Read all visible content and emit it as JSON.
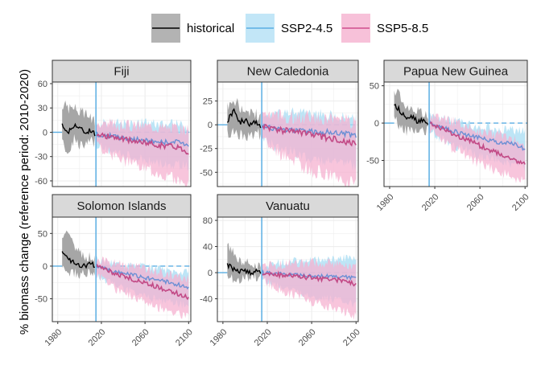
{
  "chart_data": {
    "type": "line",
    "ylabel": "% biomass change (reference period: 2010-2020)",
    "xlabel": "",
    "legend": {
      "placement": "top",
      "entries": [
        {
          "key": "historical",
          "label": "historical",
          "line": "#000000",
          "fill": "#b3b3b3"
        },
        {
          "key": "ssp245",
          "label": "SSP2-4.5",
          "line": "#5aaee3",
          "fill": "#c2e6f7"
        },
        {
          "key": "ssp585",
          "label": "SSP5-8.5",
          "line": "#cf4f8d",
          "fill": "#f7c1d9"
        }
      ]
    },
    "colors": {
      "historical_line": "#000000",
      "historical_band": "#a6a6a6",
      "ssp245_line": "#6b8fd4",
      "ssp245_band": "#a7dcf3",
      "ssp585_line": "#c24a86",
      "ssp585_band": "#f5b1d0",
      "overlap_band": "#c6a3cc",
      "vline": "#5aaee3",
      "zero_line": "#5aaee3"
    },
    "xticks": [
      1980,
      2020,
      2060,
      2100
    ],
    "xlim": [
      1975,
      2102
    ],
    "vline": 2015,
    "panels": [
      {
        "title": "Fiji",
        "ylim": [
          -67,
          62
        ],
        "yticks": [
          60,
          30,
          0,
          -30,
          -60
        ],
        "historical": {
          "x": [
            1984,
            1990,
            1995,
            2000,
            2005,
            2010,
            2014
          ],
          "y": [
            8,
            0,
            10,
            5,
            0,
            3,
            -2
          ],
          "lo": [
            -15,
            -22,
            -10,
            -15,
            -18,
            -12,
            -14
          ],
          "hi": [
            35,
            30,
            30,
            25,
            22,
            18,
            15
          ]
        },
        "ssp245": {
          "x": [
            2015,
            2030,
            2045,
            2060,
            2075,
            2090,
            2100
          ],
          "y": [
            -2,
            -5,
            -8,
            -10,
            -12,
            -12,
            -15
          ],
          "lo": [
            -15,
            -25,
            -30,
            -35,
            -38,
            -40,
            -42
          ],
          "hi": [
            10,
            12,
            10,
            12,
            10,
            10,
            8
          ]
        },
        "ssp585": {
          "x": [
            2015,
            2030,
            2045,
            2060,
            2075,
            2090,
            2100
          ],
          "y": [
            -2,
            -6,
            -10,
            -13,
            -16,
            -18,
            -25
          ],
          "lo": [
            -15,
            -28,
            -38,
            -45,
            -52,
            -58,
            -65
          ],
          "hi": [
            10,
            10,
            8,
            8,
            6,
            5,
            2
          ]
        }
      },
      {
        "title": "New Caledonia",
        "ylim": [
          -65,
          45
        ],
        "yticks": [
          25,
          0,
          -25,
          -50
        ],
        "historical": {
          "x": [
            1984,
            1990,
            1995,
            2000,
            2005,
            2010,
            2014
          ],
          "y": [
            5,
            15,
            2,
            5,
            0,
            2,
            -1
          ],
          "lo": [
            -10,
            -8,
            -8,
            -10,
            -10,
            -8,
            -9
          ],
          "hi": [
            20,
            30,
            15,
            15,
            12,
            10,
            10
          ]
        },
        "ssp245": {
          "x": [
            2015,
            2030,
            2045,
            2060,
            2075,
            2090,
            2100
          ],
          "y": [
            -1,
            -4,
            -6,
            -7,
            -8,
            -9,
            -12
          ],
          "lo": [
            -15,
            -25,
            -30,
            -35,
            -38,
            -40,
            -45
          ],
          "hi": [
            10,
            12,
            12,
            12,
            10,
            8,
            5
          ]
        },
        "ssp585": {
          "x": [
            2015,
            2030,
            2045,
            2060,
            2075,
            2090,
            2100
          ],
          "y": [
            -1,
            -5,
            -8,
            -11,
            -14,
            -17,
            -20
          ],
          "lo": [
            -15,
            -30,
            -40,
            -48,
            -52,
            -58,
            -62
          ],
          "hi": [
            10,
            10,
            8,
            8,
            6,
            5,
            2
          ]
        }
      },
      {
        "title": "Papua New Guinea",
        "ylim": [
          -85,
          55
        ],
        "yticks": [
          50,
          0,
          -50
        ],
        "historical": {
          "x": [
            1984,
            1990,
            1995,
            2000,
            2005,
            2010,
            2014
          ],
          "y": [
            25,
            15,
            5,
            8,
            2,
            5,
            0
          ],
          "lo": [
            5,
            -5,
            -10,
            -10,
            -12,
            -8,
            -10
          ],
          "hi": [
            45,
            35,
            20,
            20,
            15,
            15,
            10
          ]
        },
        "ssp245": {
          "x": [
            2015,
            2030,
            2045,
            2060,
            2075,
            2090,
            2100
          ],
          "y": [
            0,
            -8,
            -15,
            -20,
            -25,
            -28,
            -35
          ],
          "lo": [
            -10,
            -25,
            -35,
            -45,
            -50,
            -55,
            -60
          ],
          "hi": [
            10,
            5,
            0,
            -5,
            -8,
            -10,
            -12
          ]
        },
        "ssp585": {
          "x": [
            2015,
            2030,
            2045,
            2060,
            2075,
            2090,
            2100
          ],
          "y": [
            0,
            -10,
            -20,
            -30,
            -40,
            -48,
            -55
          ],
          "lo": [
            -10,
            -28,
            -42,
            -55,
            -65,
            -72,
            -80
          ],
          "hi": [
            10,
            5,
            -2,
            -10,
            -15,
            -22,
            -28
          ]
        }
      },
      {
        "title": "Solomon Islands",
        "ylim": [
          -85,
          75
        ],
        "yticks": [
          50,
          0,
          -50
        ],
        "historical": {
          "x": [
            1984,
            1990,
            1995,
            2000,
            2005,
            2010,
            2014
          ],
          "y": [
            22,
            10,
            5,
            2,
            0,
            5,
            0
          ],
          "lo": [
            -5,
            -8,
            -10,
            -12,
            -12,
            -10,
            -12
          ],
          "hi": [
            50,
            55,
            30,
            20,
            15,
            15,
            12
          ]
        },
        "ssp245": {
          "x": [
            2015,
            2030,
            2045,
            2060,
            2075,
            2090,
            2100
          ],
          "y": [
            0,
            -8,
            -12,
            -18,
            -22,
            -28,
            -32
          ],
          "lo": [
            -12,
            -28,
            -38,
            -45,
            -52,
            -58,
            -62
          ],
          "hi": [
            10,
            5,
            2,
            0,
            -5,
            -8,
            -10
          ]
        },
        "ssp585": {
          "x": [
            2015,
            2030,
            2045,
            2060,
            2075,
            2090,
            2100
          ],
          "y": [
            0,
            -10,
            -18,
            -26,
            -34,
            -42,
            -48
          ],
          "lo": [
            -12,
            -32,
            -45,
            -55,
            -65,
            -72,
            -78
          ],
          "hi": [
            10,
            5,
            0,
            -5,
            -10,
            -15,
            -20
          ]
        }
      },
      {
        "title": "Vanuatu",
        "ylim": [
          -75,
          85
        ],
        "yticks": [
          80,
          40,
          0,
          -40
        ],
        "historical": {
          "x": [
            1984,
            1990,
            1995,
            2000,
            2005,
            2010,
            2014
          ],
          "y": [
            12,
            5,
            2,
            3,
            0,
            2,
            0
          ],
          "lo": [
            -5,
            -10,
            -10,
            -8,
            -8,
            -6,
            -6
          ],
          "hi": [
            40,
            30,
            20,
            15,
            15,
            10,
            10
          ]
        },
        "ssp245": {
          "x": [
            2015,
            2030,
            2045,
            2060,
            2075,
            2090,
            2100
          ],
          "y": [
            0,
            -2,
            -4,
            -5,
            -6,
            -7,
            -8
          ],
          "lo": [
            -10,
            -20,
            -30,
            -35,
            -40,
            -45,
            -50
          ],
          "hi": [
            10,
            15,
            18,
            20,
            22,
            22,
            20
          ]
        },
        "ssp585": {
          "x": [
            2015,
            2030,
            2045,
            2060,
            2075,
            2090,
            2100
          ],
          "y": [
            0,
            -3,
            -5,
            -8,
            -10,
            -12,
            -18
          ],
          "lo": [
            -10,
            -25,
            -35,
            -45,
            -52,
            -60,
            -68
          ],
          "hi": [
            10,
            12,
            14,
            15,
            15,
            12,
            10
          ]
        }
      }
    ]
  }
}
